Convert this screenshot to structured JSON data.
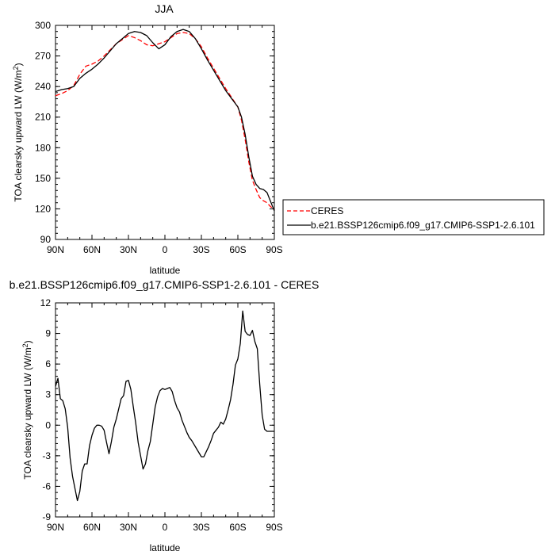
{
  "chart_data": [
    {
      "type": "line",
      "title": "JJA",
      "xlabel": "latitude",
      "ylabel": "TOA clearsky upward LW (W/m",
      "ylabel_sup": "2",
      "ylabel_tail": ")",
      "xlim": [
        90,
        -90
      ],
      "ylim": [
        90,
        300
      ],
      "xticks": [
        {
          "value": 90,
          "label": "90N"
        },
        {
          "value": 60,
          "label": "60N"
        },
        {
          "value": 30,
          "label": "30N"
        },
        {
          "value": 0,
          "label": "0"
        },
        {
          "value": -30,
          "label": "30S"
        },
        {
          "value": -60,
          "label": "60S"
        },
        {
          "value": -90,
          "label": "90S"
        }
      ],
      "yticks": [
        {
          "value": 90,
          "label": "90"
        },
        {
          "value": 120,
          "label": "120"
        },
        {
          "value": 150,
          "label": "150"
        },
        {
          "value": 180,
          "label": "180"
        },
        {
          "value": 210,
          "label": "210"
        },
        {
          "value": 240,
          "label": "240"
        },
        {
          "value": 270,
          "label": "270"
        },
        {
          "value": 300,
          "label": "300"
        }
      ],
      "legend_position": "right",
      "series": [
        {
          "name": "CERES",
          "color": "#ff0000",
          "dash": "dashed",
          "x": [
            90,
            85,
            80,
            75,
            70,
            65,
            60,
            55,
            50,
            45,
            40,
            35,
            30,
            25,
            20,
            15,
            10,
            5,
            0,
            -5,
            -10,
            -15,
            -20,
            -25,
            -30,
            -35,
            -40,
            -45,
            -50,
            -55,
            -60,
            -63,
            -66,
            -69,
            -72,
            -75,
            -78,
            -81,
            -84,
            -87,
            -90
          ],
          "y": [
            231,
            233,
            236,
            241,
            252,
            260,
            262,
            265,
            270,
            276,
            282,
            286,
            290,
            288,
            285,
            281,
            280,
            282,
            284,
            288,
            292,
            293,
            292,
            287,
            279,
            268,
            258,
            248,
            238,
            229,
            220,
            207,
            188,
            166,
            148,
            139,
            131,
            128,
            126,
            122,
            120
          ]
        },
        {
          "name": "b.e21.BSSP126cmip6.f09_g17.CMIP6-SSP1-2.6.101",
          "color": "#000000",
          "dash": "solid",
          "x": [
            90,
            85,
            80,
            75,
            70,
            65,
            60,
            55,
            50,
            45,
            40,
            35,
            30,
            25,
            20,
            15,
            10,
            5,
            0,
            -5,
            -10,
            -15,
            -20,
            -25,
            -30,
            -35,
            -40,
            -45,
            -50,
            -55,
            -60,
            -63,
            -66,
            -69,
            -72,
            -75,
            -78,
            -81,
            -84,
            -87,
            -90
          ],
          "y": [
            235,
            237,
            238,
            240,
            248,
            253,
            257,
            262,
            268,
            275,
            282,
            287,
            292,
            294,
            293,
            290,
            283,
            277,
            281,
            289,
            294,
            296,
            294,
            287,
            277,
            266,
            256,
            246,
            236,
            228,
            220,
            210,
            193,
            171,
            152,
            144,
            140,
            139,
            136,
            127,
            118
          ]
        }
      ]
    },
    {
      "type": "line",
      "title": "b.e21.BSSP126cmip6.f09_g17.CMIP6-SSP1-2.6.101 - CERES",
      "xlabel": "latitude",
      "ylabel": "TOA clearsky upward LW (W/m",
      "ylabel_sup": "2",
      "ylabel_tail": ")",
      "xlim": [
        90,
        -90
      ],
      "ylim": [
        -9,
        12
      ],
      "xticks": [
        {
          "value": 90,
          "label": "90N"
        },
        {
          "value": 60,
          "label": "60N"
        },
        {
          "value": 30,
          "label": "30N"
        },
        {
          "value": 0,
          "label": "0"
        },
        {
          "value": -30,
          "label": "30S"
        },
        {
          "value": -60,
          "label": "60S"
        },
        {
          "value": -90,
          "label": "90S"
        }
      ],
      "yticks": [
        {
          "value": -9,
          "label": "-9"
        },
        {
          "value": -6,
          "label": "-6"
        },
        {
          "value": -3,
          "label": "-3"
        },
        {
          "value": 0,
          "label": "0"
        },
        {
          "value": 3,
          "label": "3"
        },
        {
          "value": 6,
          "label": "6"
        },
        {
          "value": 9,
          "label": "9"
        },
        {
          "value": 12,
          "label": "12"
        }
      ],
      "series": [
        {
          "color": "#000000",
          "dash": "solid",
          "x": [
            90,
            88,
            86,
            84,
            82,
            80,
            78,
            76,
            74,
            72,
            70,
            68,
            66,
            64,
            62,
            60,
            58,
            56,
            54,
            52,
            50,
            48,
            46,
            44,
            42,
            40,
            38,
            36,
            34,
            32,
            30,
            28,
            26,
            24,
            22,
            20,
            18,
            16,
            14,
            12,
            10,
            8,
            6,
            4,
            2,
            0,
            -2,
            -4,
            -6,
            -8,
            -10,
            -12,
            -14,
            -16,
            -18,
            -20,
            -22,
            -24,
            -26,
            -28,
            -30,
            -32,
            -34,
            -36,
            -38,
            -40,
            -42,
            -44,
            -46,
            -48,
            -50,
            -52,
            -54,
            -56,
            -58,
            -60,
            -62,
            -64,
            -66,
            -68,
            -70,
            -72,
            -74,
            -76,
            -78,
            -80,
            -82,
            -84,
            -86,
            -88,
            -90
          ],
          "y": [
            3.8,
            4.6,
            2.6,
            2.4,
            1.6,
            -0.2,
            -3.2,
            -5.0,
            -6.2,
            -7.4,
            -6.5,
            -4.5,
            -3.8,
            -3.8,
            -2.0,
            -1.0,
            -0.3,
            0.0,
            0.0,
            -0.1,
            -0.5,
            -1.7,
            -2.8,
            -1.6,
            -0.2,
            0.6,
            1.6,
            2.6,
            2.9,
            4.3,
            4.4,
            3.5,
            1.8,
            0.2,
            -1.7,
            -3.0,
            -4.3,
            -3.8,
            -2.5,
            -1.6,
            0.1,
            1.8,
            2.8,
            3.4,
            3.6,
            3.5,
            3.6,
            3.7,
            3.3,
            2.4,
            1.7,
            1.3,
            0.5,
            -0.1,
            -0.7,
            -1.2,
            -1.5,
            -1.9,
            -2.3,
            -2.7,
            -3.1,
            -3.1,
            -2.6,
            -2.1,
            -1.5,
            -0.8,
            -0.5,
            -0.2,
            0.3,
            0.1,
            0.6,
            1.5,
            2.5,
            4.0,
            5.9,
            6.5,
            8.0,
            11.2,
            9.2,
            8.9,
            8.8,
            9.3,
            8.2,
            7.5,
            4.0,
            1.0,
            -0.4,
            -0.6,
            -0.6,
            -0.6,
            -0.6
          ]
        }
      ]
    }
  ]
}
